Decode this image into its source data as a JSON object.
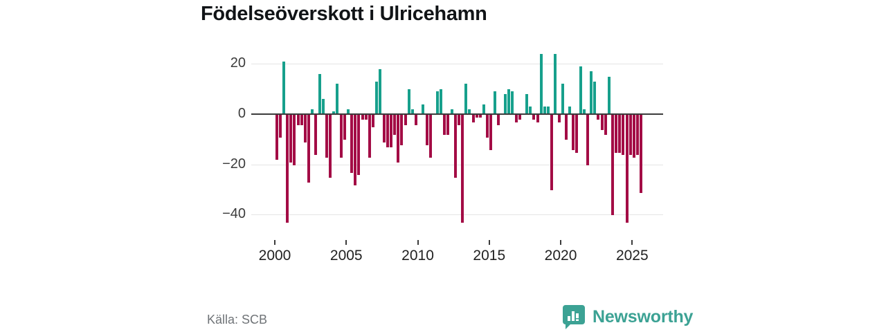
{
  "title": "Födelseöverskott i Ulricehamn",
  "source": "Källa: SCB",
  "brand": {
    "name": "Newsworthy",
    "color": "#3CA294",
    "icon": "newsworthy-chart-bubble-icon"
  },
  "chart_data": {
    "type": "bar",
    "title": "Födelseöverskott i Ulricehamn",
    "period": "quarterly",
    "start_period": "2000-Q1",
    "end_period": "2025-Q3",
    "xlabel": "",
    "ylabel": "",
    "x_tick_labels": [
      "2000",
      "2005",
      "2010",
      "2015",
      "2020",
      "2025"
    ],
    "y_ticks": [
      20,
      0,
      -20,
      -40
    ],
    "y_tick_labels": [
      "20",
      "0",
      "−20",
      "−40"
    ],
    "ylim": [
      -46,
      26
    ],
    "grid": "horizontal",
    "legend": "none",
    "positive_color": "#17A08C",
    "negative_color": "#A30C45",
    "values": [
      -18,
      -9,
      21,
      -43,
      -19,
      -20,
      -4,
      -4,
      -11,
      -27,
      2,
      -16,
      16,
      6,
      -17,
      -25,
      1,
      12,
      -17,
      -10,
      2,
      -23,
      -28,
      -24,
      -2,
      -2,
      -17,
      -5,
      13,
      18,
      -11,
      -13,
      -13,
      -8,
      -19,
      -12,
      -4,
      10,
      2,
      -4,
      0,
      4,
      -12,
      -17,
      0,
      9,
      10,
      -8,
      -8,
      2,
      -25,
      -4,
      -43,
      12,
      2,
      -3,
      -1,
      -1,
      4,
      -9,
      -14,
      9,
      -4,
      0,
      8,
      10,
      9,
      -3,
      -2,
      0,
      8,
      3,
      -2,
      -3,
      24,
      3,
      3,
      -30,
      24,
      -3,
      12,
      -10,
      3,
      -14,
      -15,
      19,
      2,
      -20,
      17,
      13,
      -2,
      -6,
      -8,
      15,
      -40,
      -15,
      -15,
      -16,
      -43,
      -16,
      -17,
      -16,
      -31
    ]
  }
}
